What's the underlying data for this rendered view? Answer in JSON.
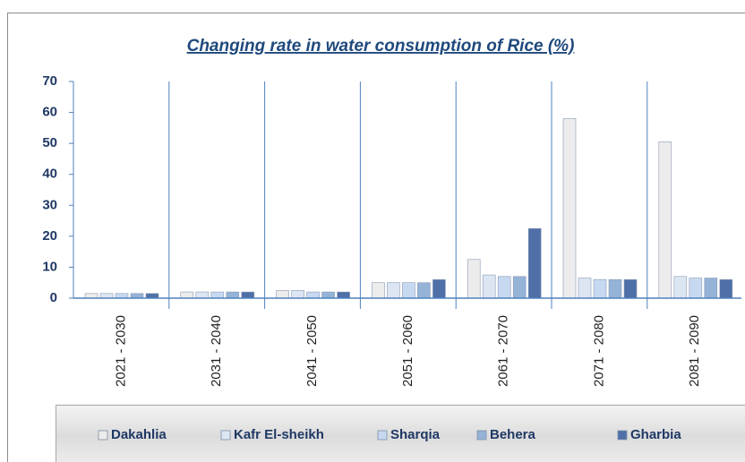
{
  "chart_data": {
    "type": "bar",
    "title": "Changing rate in water consumption of Rice (%)",
    "categories": [
      "2021 - 2030",
      "2031 - 2040",
      "2041 - 2050",
      "2051 - 2060",
      "2061 - 2070",
      "2071 - 2080",
      "2081 - 2090"
    ],
    "series": [
      {
        "name": "Dakahlia",
        "color": "#ececec",
        "values": [
          1.5,
          2,
          2.5,
          5,
          12.5,
          58,
          50.5
        ]
      },
      {
        "name": "Kafr El-sheikh",
        "color": "#dce6f2",
        "values": [
          1.5,
          2,
          2.5,
          5,
          7.5,
          6.5,
          7
        ]
      },
      {
        "name": "Sharqia",
        "color": "#c6d9f1",
        "values": [
          1.5,
          2,
          2,
          5,
          7,
          6,
          6.5
        ]
      },
      {
        "name": "Behera",
        "color": "#95b3d7",
        "values": [
          1.5,
          2,
          2,
          5,
          7,
          6,
          6.5
        ]
      },
      {
        "name": "Gharbia",
        "color": "#4f6fa8",
        "values": [
          1.5,
          2,
          2,
          6,
          22.5,
          6,
          6
        ]
      }
    ],
    "ylim": [
      0,
      70
    ],
    "yticks": [
      0,
      10,
      20,
      30,
      40,
      50,
      60,
      70
    ]
  }
}
